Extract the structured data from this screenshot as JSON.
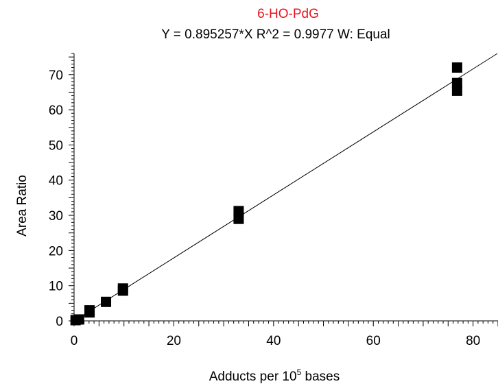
{
  "chart_data": {
    "type": "scatter",
    "title": "6-HO-PdG",
    "subtitle": "Y = 0.895257*X   R^2 = 0.9977    W: Equal",
    "xlabel": {
      "main": "Adducts per 10",
      "superscript": "5",
      "suffix": " bases"
    },
    "ylabel": "Area Ratio",
    "xlim": [
      0,
      85
    ],
    "ylim": [
      0,
      76
    ],
    "x_ticks": [
      0,
      20,
      40,
      60,
      80
    ],
    "y_ticks": [
      0,
      10,
      20,
      30,
      40,
      50,
      60,
      70
    ],
    "fit": {
      "slope": 0.895257,
      "intercept": 0,
      "r2": 0.9977,
      "weighting": "Equal"
    },
    "points": [
      {
        "x": 0.3,
        "y": 0.2
      },
      {
        "x": 1.0,
        "y": 0.4
      },
      {
        "x": 3.1,
        "y": 2.4
      },
      {
        "x": 3.1,
        "y": 3.0
      },
      {
        "x": 6.4,
        "y": 5.4
      },
      {
        "x": 9.8,
        "y": 8.6
      },
      {
        "x": 9.8,
        "y": 9.2
      },
      {
        "x": 33.0,
        "y": 29.0
      },
      {
        "x": 33.0,
        "y": 31.2
      },
      {
        "x": 76.8,
        "y": 65.4
      },
      {
        "x": 76.8,
        "y": 67.6
      },
      {
        "x": 76.8,
        "y": 72.0
      }
    ],
    "colors": {
      "title": "#e8141e",
      "marker": "#000000",
      "line": "#000000"
    }
  }
}
